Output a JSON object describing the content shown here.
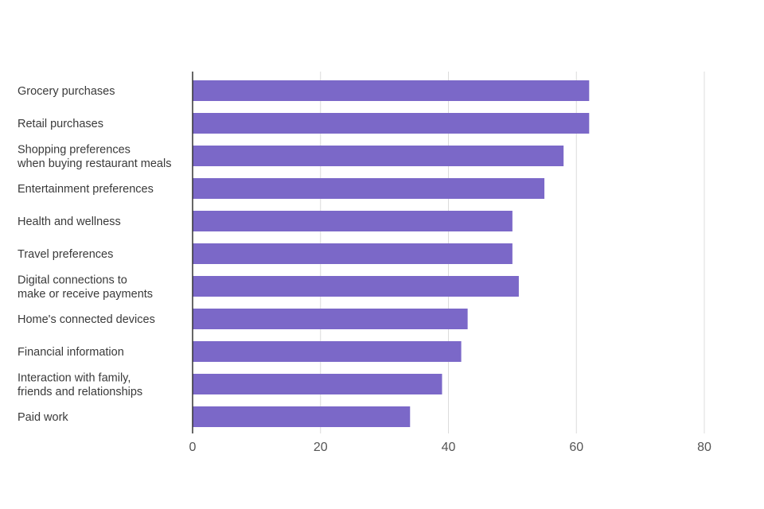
{
  "chart_data": {
    "type": "bar",
    "orientation": "horizontal",
    "title": "",
    "xlabel": "",
    "ylabel": "",
    "xlim": [
      0,
      80
    ],
    "ticks": [
      0,
      20,
      40,
      60,
      80
    ],
    "tick_labels": [
      "0",
      "20",
      "40",
      "60",
      "80"
    ],
    "grid": true,
    "bar_color": "#7b68c8",
    "categories": [
      [
        "Grocery purchases"
      ],
      [
        "Retail purchases"
      ],
      [
        "Shopping preferences",
        "when buying restaurant meals"
      ],
      [
        "Entertainment preferences"
      ],
      [
        "Health and wellness"
      ],
      [
        "Travel preferences"
      ],
      [
        "Digital connections to",
        "make or receive payments"
      ],
      [
        "Home's connected devices"
      ],
      [
        "Financial information"
      ],
      [
        "Interaction with family,",
        "friends and relationships"
      ],
      [
        "Paid work"
      ]
    ],
    "values": [
      62,
      62,
      58,
      55,
      50,
      50,
      51,
      43,
      42,
      39,
      34
    ]
  },
  "colors": {
    "bar": "#7b68c8",
    "grid": "#dcdcdc",
    "axis": "#333333",
    "label": "#3a3a3a",
    "tick": "#555555"
  }
}
